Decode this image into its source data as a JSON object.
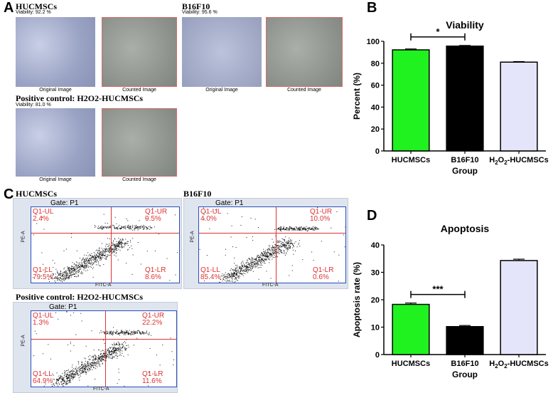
{
  "panelA": {
    "label": "A",
    "hucmscs": {
      "title": "HUCMSCs",
      "viability": "Viability: 92.2 %"
    },
    "b16f10": {
      "title": "B16F10",
      "viability": "Viability: 95.6 %"
    },
    "positive": {
      "title": "Positive control:  H2O2-HUCMSCs",
      "viability": "Viability: 81.0 %"
    },
    "original_caption": "Original Image",
    "counted_caption": "Counted Image"
  },
  "panelB": {
    "label": "B",
    "chart_data": {
      "type": "bar",
      "title": "Viability",
      "xlabel": "Group",
      "ylabel": "Percent (%)",
      "categories": [
        "HUCMSCs",
        "B16F10",
        "H2O2-HUCMSCs"
      ],
      "values": [
        92.2,
        95.6,
        81.0
      ],
      "errors": [
        0.8,
        0.6,
        0.5
      ],
      "colors": [
        "#1ff21f",
        "#000000",
        "#e4e4fb"
      ],
      "ylim": [
        0,
        100
      ],
      "yticks": [
        0,
        20,
        40,
        60,
        80,
        100
      ],
      "significance": {
        "from": 0,
        "to": 1,
        "label": "*"
      }
    }
  },
  "panelC": {
    "label": "C",
    "gate": "Gate: P1",
    "x_axis_label": "FITC-A",
    "y_axis_label": "PE-A",
    "plots": [
      {
        "title": "HUCMSCs",
        "ul": "Q1-UL",
        "ul_val": "2.4%",
        "ur": "Q1-UR",
        "ur_val": "9.5%",
        "ll": "Q1-LL",
        "ll_val": "79.5%",
        "lr": "Q1-LR",
        "lr_val": "8.6%"
      },
      {
        "title": "B16F10",
        "ul": "Q1-UL",
        "ul_val": "4.0%",
        "ur": "Q1-UR",
        "ur_val": "10.0%",
        "ll": "Q1-LL",
        "ll_val": "85.4%",
        "lr": "Q1-LR",
        "lr_val": "0.6%"
      },
      {
        "title": "Positive control:  H2O2-HUCMSCs",
        "ul": "Q1-UL",
        "ul_val": "1.3%",
        "ur": "Q1-UR",
        "ur_val": "22.2%",
        "ll": "Q1-LL",
        "ll_val": "64.9%",
        "lr": "Q1-LR",
        "lr_val": "11.6%"
      }
    ]
  },
  "panelD": {
    "label": "D",
    "chart_data": {
      "type": "bar",
      "title": "Apoptosis",
      "xlabel": "Group",
      "ylabel": "Apoptosis rate (%)",
      "categories": [
        "HUCMSCs",
        "B16F10",
        "H2O2-HUCMSCs"
      ],
      "values": [
        18.3,
        10.2,
        34.3
      ],
      "errors": [
        0.5,
        0.4,
        0.5
      ],
      "colors": [
        "#1ff21f",
        "#000000",
        "#e4e4fb"
      ],
      "ylim": [
        0,
        40
      ],
      "yticks": [
        0,
        10,
        20,
        30,
        40
      ],
      "significance": {
        "from": 0,
        "to": 1,
        "label": "***"
      }
    }
  }
}
